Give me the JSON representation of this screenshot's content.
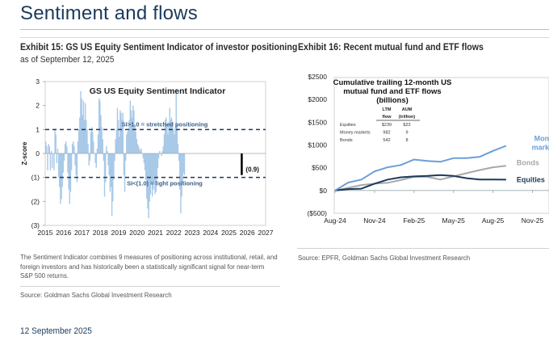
{
  "page": {
    "title": "Sentiment and flows",
    "footer_date": "12 September 2025"
  },
  "exhibit15": {
    "title": "Exhibit 15: GS US Equity Sentiment Indicator of investor positioning",
    "subtitle": "as of September 12, 2025",
    "note": "The Sentiment Indicator combines 9 measures of positioning across institutional, retail, and foreign investors and has historically been a statistically significant signal for near-term S&P 500 returns.",
    "source": "Source: Goldman Sachs Global Investment Research"
  },
  "exhibit16": {
    "title": "Exhibit 16: Recent mutual fund and ETF flows",
    "source": "Source: EPFR, Goldman Sachs Global Investment Research"
  },
  "chart_data": [
    {
      "type": "bar",
      "title": "GS US Equity Sentiment Indicator",
      "xlabel": "",
      "ylabel": "Z-score",
      "ylim": [
        -3,
        3
      ],
      "xlim": [
        2015,
        2027
      ],
      "xticks": [
        "2015",
        "2016",
        "2017",
        "2018",
        "2019",
        "2020",
        "2021",
        "2022",
        "2023",
        "2024",
        "2025",
        "2026",
        "2027"
      ],
      "yticks": [
        {
          "value": 3,
          "label": "3"
        },
        {
          "value": 2,
          "label": "2"
        },
        {
          "value": 1,
          "label": "1"
        },
        {
          "value": 0,
          "label": "0"
        },
        {
          "value": -1,
          "label": "(1)"
        },
        {
          "value": -2,
          "label": "(2)"
        },
        {
          "value": -3,
          "label": "(3)"
        }
      ],
      "grid": false,
      "series_color": "#a9c9e8",
      "reference_lines": [
        {
          "value": 1,
          "label": "SI>1.0 = stretched positioning",
          "style": "dashed",
          "color": "#1c3a5c"
        },
        {
          "value": -1,
          "label": "SI<(1.0) = light positioning",
          "style": "dashed",
          "color": "#1c3a5c"
        }
      ],
      "latest": {
        "x": 2025.7,
        "value": -0.9,
        "label": "(0.9)",
        "color": "#000000"
      },
      "x_start": 2015.0,
      "x_step": 0.05,
      "values": [
        0.5,
        0.3,
        -0.7,
        0.4,
        0.3,
        -0.7,
        0.1,
        -0.6,
        0.0,
        -0.7,
        1.0,
        0.8,
        -0.4,
        0.2,
        -1.0,
        -1.4,
        -2.1,
        -1.9,
        -1.4,
        -0.8,
        -0.3,
        0.4,
        0.5,
        0.3,
        -0.8,
        -1.5,
        -2.1,
        -1.6,
        -0.7,
        0.4,
        0.5,
        0.3,
        -0.5,
        -0.9,
        -1.2,
        0.5,
        1.0,
        1.5,
        2.6,
        2.3,
        1.6,
        2.2,
        1.4,
        2.1,
        1.4,
        1.0,
        0.4,
        -0.5,
        -0.3,
        0.9,
        1.1,
        0.9,
        0.5,
        0.0,
        -0.4,
        -0.6,
        0.2,
        0.8,
        2.3,
        2.2,
        1.6,
        1.1,
        0.6,
        -0.3,
        -1.8,
        -1.2,
        0.3,
        0.1,
        -0.5,
        -0.9,
        -1.6,
        -1.4,
        -2.6,
        -2.0,
        -1.1,
        -0.3,
        0.6,
        1.0,
        1.9,
        1.4,
        0.7,
        1.8,
        1.7,
        1.4,
        1.7,
        -0.9,
        -1.6,
        -0.3,
        0.8,
        0.9,
        1.0,
        1.4,
        2.2,
        1.8,
        1.5,
        2.0,
        1.8,
        1.2,
        0.9,
        0.6,
        0.4,
        0.3,
        0.2,
        0.1,
        0.2,
        0.0,
        -0.2,
        -0.4,
        -0.7,
        -1.1,
        -1.9,
        -2.3,
        -2.7,
        -2.0,
        -1.7,
        -1.3,
        -1.8,
        -1.5,
        -1.3,
        -1.7,
        -1.6,
        -1.1,
        -0.6,
        -0.2,
        0.1,
        0.0,
        -0.1,
        0.1,
        0.3,
        0.8,
        1.4,
        1.5,
        1.2,
        0.8,
        1.3,
        1.9,
        1.4,
        1.5,
        1.3,
        1.0,
        0.8,
        1.1,
        2.7,
        1.2,
        0.4,
        -0.3,
        -1.5,
        -2.5,
        -1.8,
        -1.2,
        -0.8,
        -0.9
      ],
      "series_name": "GS US Equity Sentiment Indicator"
    },
    {
      "type": "line",
      "title": "Cumulative trailing 12-month US mutual fund and ETF flows (billions)",
      "xlabel": "",
      "ylabel": "",
      "ylim": [
        -500,
        2500
      ],
      "yticks": [
        {
          "value": 2500,
          "label": "$2500"
        },
        {
          "value": 2000,
          "label": "$2000"
        },
        {
          "value": 1500,
          "label": "$1500"
        },
        {
          "value": 1000,
          "label": "$1000"
        },
        {
          "value": 500,
          "label": "$500"
        },
        {
          "value": 0,
          "label": "$0"
        },
        {
          "value": -500,
          "label": "($500)"
        }
      ],
      "xticks": [
        "Aug-24",
        "Nov-24",
        "Feb-25",
        "May-25",
        "Aug-25",
        "Nov-25"
      ],
      "x_months": [
        "Aug-24",
        "Sep-24",
        "Oct-24",
        "Nov-24",
        "Dec-24",
        "Jan-25",
        "Feb-25",
        "Mar-25",
        "Apr-25",
        "May-25",
        "Jun-25",
        "Jul-25",
        "Aug-25",
        "Sep-25"
      ],
      "grid": false,
      "legend": "right (inline labels)",
      "series": [
        {
          "name": "Money markets",
          "label_lines": [
            "Money",
            "markets"
          ],
          "color": "#6a9fd8",
          "values": [
            0,
            175,
            240,
            420,
            510,
            560,
            680,
            650,
            630,
            710,
            710,
            740,
            870,
            982
          ]
        },
        {
          "name": "Bonds",
          "label_lines": [
            "Bonds"
          ],
          "color": "#a8a8a8",
          "values": [
            0,
            60,
            120,
            150,
            170,
            230,
            300,
            300,
            240,
            310,
            380,
            450,
            510,
            542
          ]
        },
        {
          "name": "Equities",
          "label_lines": [
            "Equities"
          ],
          "color": "#1c3a5c",
          "values": [
            0,
            30,
            40,
            150,
            240,
            290,
            310,
            320,
            340,
            320,
            270,
            240,
            240,
            239
          ]
        }
      ],
      "inset_table": {
        "headers": [
          [
            "LTM",
            "flow"
          ],
          [
            "AUM",
            "(trillion)"
          ]
        ],
        "rows": [
          {
            "name": "Equities",
            "ltm_flow": "$239",
            "aum": "$23"
          },
          {
            "name": "Money markets",
            "ltm_flow": "982",
            "aum": "9"
          },
          {
            "name": "Bonds",
            "ltm_flow": "542",
            "aum": "8"
          }
        ]
      }
    }
  ]
}
